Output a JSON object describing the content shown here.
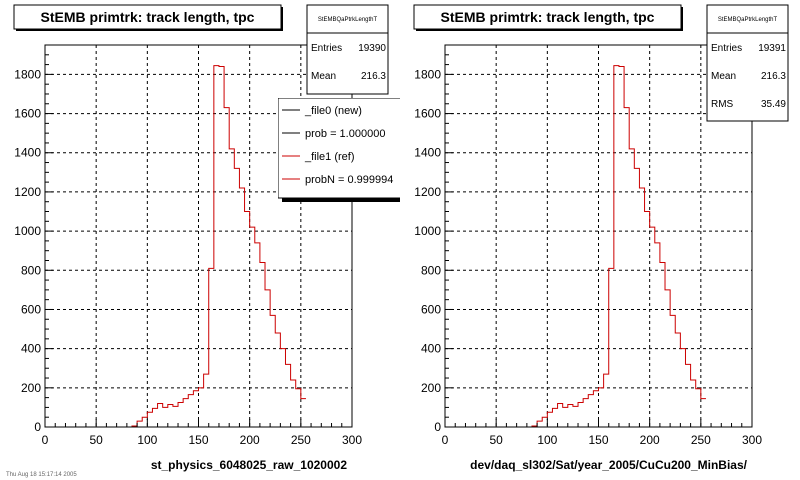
{
  "footer_text": "Thu Aug 18 15:17:14 2005",
  "chart_data": [
    {
      "type": "histogram",
      "title": "StEMB primtrk: track length, tpc",
      "xlabel": "st_physics_6048025_raw_1020002",
      "ylabel": "",
      "xlim": [
        0,
        300
      ],
      "ylim": [
        0,
        1950
      ],
      "bin_width": 5,
      "xticks": [
        0,
        50,
        100,
        150,
        200,
        250,
        300
      ],
      "yticks": [
        0,
        200,
        400,
        600,
        800,
        1000,
        1200,
        1400,
        1600,
        1800
      ],
      "grid": true,
      "stats": {
        "name": "StEMBQaPtrkLengthT",
        "entries_label": "Entries",
        "entries": "19390",
        "mean_label": "Mean",
        "mean": "216.3"
      },
      "legend": {
        "placement": "top-right",
        "entries": [
          {
            "label": "_file0 (new)",
            "color": "#000000"
          },
          {
            "label": "prob = 1.000000",
            "color": "#000000"
          },
          {
            "label": "_file1 (ref)",
            "color": "#cc0000"
          },
          {
            "label": "probN = 0.999994",
            "color": "#cc0000"
          }
        ]
      },
      "series": [
        {
          "color": "#cc0000",
          "values": [
            0,
            0,
            0,
            0,
            0,
            0,
            0,
            0,
            0,
            0,
            0,
            0,
            0,
            0,
            0,
            0,
            0,
            5,
            30,
            50,
            75,
            95,
            120,
            100,
            115,
            105,
            125,
            145,
            165,
            185,
            200,
            270,
            810,
            1845,
            1840,
            1630,
            1420,
            1320,
            1220,
            1100,
            1020,
            940,
            840,
            700,
            570,
            480,
            400,
            320,
            240,
            195,
            145
          ]
        }
      ]
    },
    {
      "type": "histogram",
      "title": "StEMB primtrk: track length, tpc",
      "xlabel": "dev/daq_sl302/Sat/year_2005/CuCu200_MinBias/",
      "ylabel": "",
      "xlim": [
        0,
        300
      ],
      "ylim": [
        0,
        1950
      ],
      "bin_width": 5,
      "xticks": [
        0,
        50,
        100,
        150,
        200,
        250,
        300
      ],
      "yticks": [
        0,
        200,
        400,
        600,
        800,
        1000,
        1200,
        1400,
        1600,
        1800
      ],
      "grid": true,
      "stats": {
        "name": "StEMBQaPtrkLengthT",
        "entries_label": "Entries",
        "entries": "19391",
        "mean_label": "Mean",
        "mean": "216.3",
        "rms_label": "RMS",
        "rms": "35.49"
      },
      "series": [
        {
          "color": "#cc0000",
          "values": [
            0,
            0,
            0,
            0,
            0,
            0,
            0,
            0,
            0,
            0,
            0,
            0,
            0,
            0,
            0,
            0,
            0,
            5,
            30,
            50,
            75,
            95,
            120,
            100,
            115,
            105,
            125,
            145,
            165,
            185,
            200,
            270,
            810,
            1845,
            1840,
            1630,
            1420,
            1320,
            1220,
            1100,
            1020,
            940,
            840,
            700,
            570,
            480,
            400,
            320,
            240,
            195,
            145
          ]
        }
      ]
    }
  ]
}
